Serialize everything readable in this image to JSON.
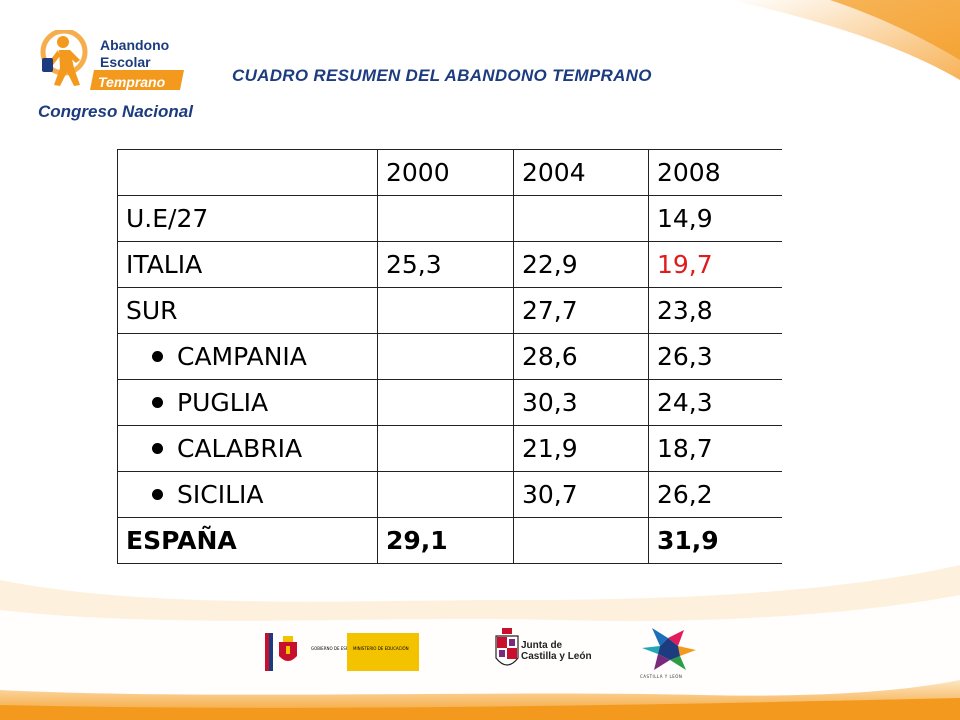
{
  "logo": {
    "line1": "Abandono",
    "line2": "Escolar",
    "line3": "Temprano",
    "line4": "Congreso Nacional"
  },
  "title": "CUADRO RESUMEN DEL ABANDONO TEMPRANO",
  "table": {
    "headers": [
      "",
      "2000",
      "2004",
      "2008"
    ],
    "rows": [
      {
        "label": "U.E/27",
        "bullet": false,
        "v2000": "",
        "v2004": "",
        "v2008": "14,9"
      },
      {
        "label": "ITALIA",
        "bullet": false,
        "v2000": "25,3",
        "v2004": "22,9",
        "v2008": "19,7",
        "highlight_2008": "#e01b1b"
      },
      {
        "label": "SUR",
        "bullet": false,
        "v2000": "",
        "v2004": "27,7",
        "v2008": "23,8"
      },
      {
        "label": "CAMPANIA",
        "bullet": true,
        "v2000": "",
        "v2004": "28,6",
        "v2008": "26,3"
      },
      {
        "label": "PUGLIA",
        "bullet": true,
        "v2000": "",
        "v2004": "30,3",
        "v2008": "24,3"
      },
      {
        "label": "CALABRIA",
        "bullet": true,
        "v2000": "",
        "v2004": "21,9",
        "v2008": "18,7"
      },
      {
        "label": "SICILIA",
        "bullet": true,
        "v2000": "",
        "v2004": "30,7",
        "v2008": "26,2"
      },
      {
        "label": "ESPAÑA",
        "bullet": false,
        "bold": true,
        "v2000": "29,1",
        "v2004": "",
        "v2008": "31,9"
      }
    ]
  },
  "footer_logos": {
    "gobierno": "GOBIERNO DE ESPAÑA",
    "ministerio": "MINISTERIO DE EDUCACIÓN",
    "junta_line1": "Junta de",
    "junta_line2": "Castilla y León",
    "cyl": "CASTILLA Y LEÓN"
  },
  "colors": {
    "accent_orange": "#f39a1e",
    "title_blue": "#1d3c80",
    "highlight_red": "#e01b1b"
  }
}
